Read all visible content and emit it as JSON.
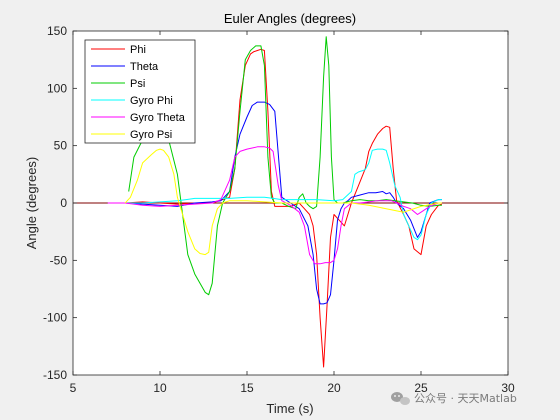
{
  "watermark": {
    "text": "公众号 · 天天Matlab",
    "icon": "wechat-icon"
  },
  "chart_data": {
    "type": "line",
    "title": "Euler Angles (degrees)",
    "xlabel": "Time (s)",
    "ylabel": "Angle (degrees)",
    "xlim": [
      5,
      30
    ],
    "ylim": [
      -150,
      150
    ],
    "xticks": [
      5,
      10,
      15,
      20,
      25,
      30
    ],
    "yticks": [
      -150,
      -100,
      -50,
      0,
      50,
      100,
      150
    ],
    "grid": false,
    "legend_position": "top-left",
    "reference_line": {
      "y": 0,
      "color": "#7f0000"
    },
    "series": [
      {
        "name": "Phi",
        "color": "#ff0000",
        "x": [
          7.0,
          8.0,
          9.0,
          10.0,
          11.0,
          12.0,
          13.0,
          14.0,
          14.3,
          14.6,
          14.9,
          15.2,
          15.4,
          15.6,
          15.8,
          16.0,
          16.2,
          16.4,
          16.6,
          17.0,
          17.5,
          18.0,
          18.3,
          18.6,
          18.8,
          19.0,
          19.2,
          19.4,
          19.6,
          19.8,
          20.0,
          20.3,
          20.6,
          21.0,
          21.4,
          21.8,
          22.0,
          22.2,
          22.5,
          22.8,
          23.0,
          23.2,
          23.4,
          23.6,
          24.0,
          24.3,
          24.6,
          25.0,
          25.3,
          25.6,
          26.0,
          26.2
        ],
        "y": [
          0,
          0,
          1,
          0,
          -1,
          0,
          0,
          5,
          30,
          90,
          120,
          130,
          132,
          133,
          134,
          133,
          80,
          10,
          -3,
          -3,
          -3,
          0,
          -5,
          -10,
          -20,
          -45,
          -100,
          -143,
          -90,
          -30,
          -10,
          -15,
          -20,
          0,
          15,
          30,
          45,
          52,
          60,
          65,
          67,
          66,
          30,
          2,
          -10,
          -20,
          -40,
          -45,
          -20,
          -10,
          -2,
          -1
        ]
      },
      {
        "name": "Theta",
        "color": "#0000ff",
        "x": [
          7.0,
          8.0,
          9.0,
          10.0,
          11.0,
          12.0,
          13.0,
          13.5,
          14.0,
          14.3,
          14.6,
          15.0,
          15.3,
          15.6,
          16.0,
          16.3,
          16.6,
          17.0,
          17.5,
          18.0,
          18.5,
          18.8,
          19.0,
          19.2,
          19.4,
          19.6,
          19.8,
          20.0,
          20.2,
          20.4,
          20.6,
          20.8,
          21.0,
          21.5,
          22.0,
          22.4,
          22.8,
          23.0,
          23.2,
          23.4,
          23.6,
          24.0,
          24.4,
          24.8,
          25.0,
          25.5,
          26.0,
          26.2
        ],
        "y": [
          0,
          0,
          -1,
          -2,
          -3,
          0,
          1,
          2,
          10,
          40,
          60,
          75,
          85,
          88,
          88,
          86,
          80,
          5,
          0,
          -5,
          -20,
          -45,
          -75,
          -88,
          -88,
          -87,
          -80,
          -50,
          -15,
          -5,
          0,
          2,
          5,
          7,
          9,
          9,
          10,
          8,
          9,
          5,
          0,
          -5,
          -15,
          -30,
          -25,
          0,
          3,
          3
        ]
      },
      {
        "name": "Psi",
        "color": "#00cc00",
        "x": [
          8.2,
          8.5,
          9.0,
          9.5,
          10.0,
          10.5,
          11.0,
          11.3,
          11.6,
          12.0,
          12.3,
          12.6,
          12.8,
          13.0,
          13.3,
          13.6,
          14.0,
          14.3,
          14.6,
          14.9,
          15.2,
          15.5,
          15.8,
          16.0,
          16.2,
          16.4,
          16.6,
          17.0,
          17.4,
          17.8,
          18.0,
          18.2,
          18.4,
          18.6,
          18.8,
          19.0,
          19.2,
          19.4,
          19.55,
          19.7,
          19.85,
          20.0,
          20.2,
          20.5,
          21.0,
          21.5,
          22.0,
          22.5,
          23.0,
          23.5,
          24.0,
          24.5,
          25.0,
          25.5,
          26.0,
          26.2
        ],
        "y": [
          10,
          40,
          55,
          62,
          70,
          55,
          25,
          -10,
          -45,
          -62,
          -70,
          -78,
          -80,
          -70,
          -20,
          0,
          10,
          30,
          80,
          125,
          133,
          137,
          137,
          120,
          40,
          5,
          0,
          0,
          -3,
          -5,
          5,
          8,
          0,
          -3,
          -5,
          -3,
          40,
          110,
          145,
          120,
          40,
          3,
          0,
          0,
          2,
          3,
          2,
          2,
          3,
          2,
          1,
          0,
          -2,
          -3,
          -2,
          -2
        ]
      },
      {
        "name": "Gyro Phi",
        "color": "#00ffff",
        "x": [
          8.0,
          9.0,
          10.0,
          11.0,
          11.5,
          12.0,
          13.0,
          14.0,
          15.0,
          16.0,
          16.5,
          17.0,
          18.0,
          19.0,
          20.0,
          20.5,
          21.0,
          21.2,
          21.4,
          21.6,
          21.8,
          22.0,
          22.2,
          22.5,
          22.8,
          23.0,
          23.2,
          23.5,
          23.8,
          24.0,
          24.3,
          24.6,
          24.8,
          25.0,
          25.3,
          25.6,
          26.0,
          26.2
        ],
        "y": [
          0,
          0,
          1,
          2,
          3,
          4,
          4,
          4,
          5,
          5,
          4,
          3,
          3,
          3,
          2,
          3,
          10,
          25,
          27,
          28,
          29,
          35,
          46,
          47,
          47,
          46,
          35,
          15,
          5,
          -10,
          -20,
          -30,
          -32,
          -28,
          -10,
          0,
          3,
          3
        ]
      },
      {
        "name": "Gyro Theta",
        "color": "#ff00ff",
        "x": [
          7.0,
          8.0,
          9.0,
          10.0,
          11.0,
          12.0,
          13.0,
          13.5,
          14.0,
          14.3,
          14.6,
          15.0,
          15.3,
          15.6,
          16.0,
          16.3,
          16.5,
          16.8,
          17.0,
          17.5,
          18.0,
          18.3,
          18.6,
          18.9,
          19.2,
          19.5,
          19.8,
          20.0,
          20.2,
          20.4,
          20.6,
          21.0,
          21.5,
          22.0,
          22.5,
          23.0,
          23.3,
          23.6,
          24.0,
          24.4,
          24.8,
          25.0,
          25.5,
          26.0,
          26.2
        ],
        "y": [
          0,
          0,
          -2,
          -3,
          -2,
          -1,
          0,
          3,
          20,
          40,
          45,
          47,
          48,
          49,
          49,
          48,
          45,
          15,
          2,
          -2,
          -8,
          -20,
          -45,
          -53,
          -53,
          -52,
          -52,
          -50,
          -40,
          -20,
          -5,
          0,
          0,
          1,
          2,
          2,
          2,
          0,
          -3,
          -5,
          -10,
          -8,
          -3,
          0,
          0
        ]
      },
      {
        "name": "Gyro Psi",
        "color": "#ffff00",
        "x": [
          8.0,
          8.3,
          8.7,
          9.0,
          9.5,
          9.8,
          10.0,
          10.2,
          10.5,
          10.8,
          11.0,
          11.3,
          11.6,
          12.0,
          12.3,
          12.6,
          12.8,
          13.0,
          13.3,
          13.6,
          14.0,
          15.0,
          16.0,
          17.0,
          18.0,
          19.0,
          20.0,
          21.0,
          22.0,
          23.0,
          24.0,
          25.0,
          26.0,
          26.2
        ],
        "y": [
          0,
          5,
          20,
          35,
          42,
          46,
          47,
          46,
          40,
          25,
          5,
          -10,
          -25,
          -40,
          -44,
          -45,
          -43,
          -20,
          -5,
          0,
          2,
          2,
          1,
          0,
          0,
          0,
          0,
          0,
          -2,
          -5,
          -8,
          -3,
          0,
          0
        ]
      }
    ]
  }
}
